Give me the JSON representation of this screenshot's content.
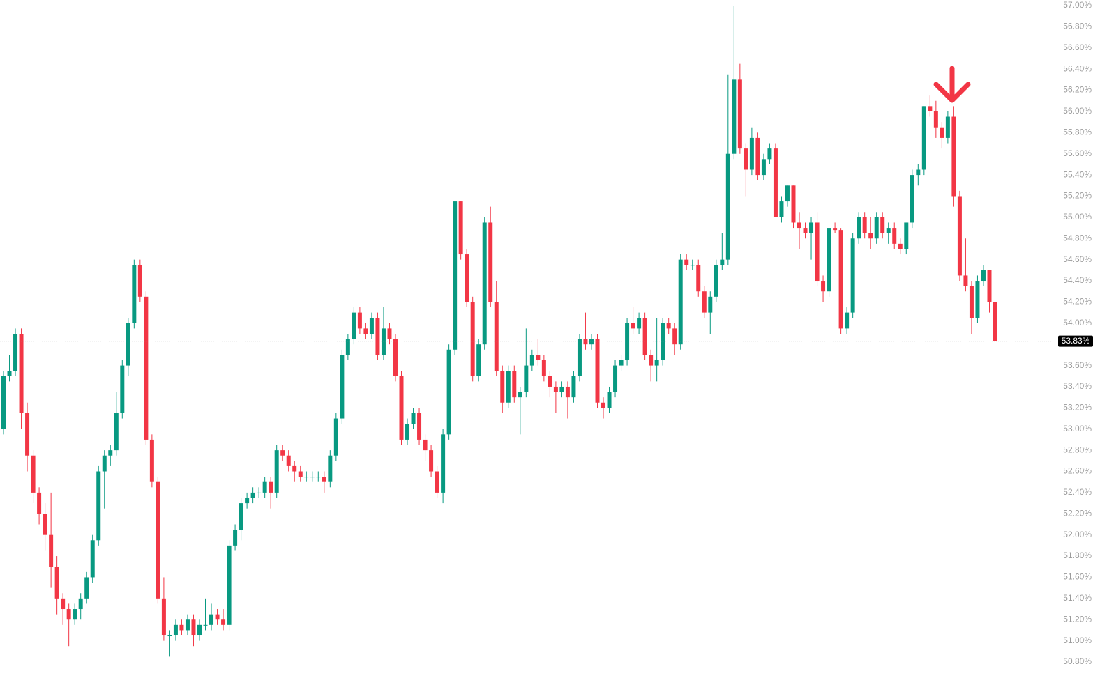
{
  "chart_data": {
    "type": "candlestick",
    "up_color": "#089981",
    "down_color": "#f23645",
    "ylim": [
      50.8,
      57.0
    ],
    "yticks": [
      {
        "value": 50.8,
        "label": "50.80%"
      },
      {
        "value": 51.0,
        "label": "51.00%"
      },
      {
        "value": 51.2,
        "label": "51.20%"
      },
      {
        "value": 51.4,
        "label": "51.40%"
      },
      {
        "value": 51.6,
        "label": "51.60%"
      },
      {
        "value": 51.8,
        "label": "51.80%"
      },
      {
        "value": 52.0,
        "label": "52.00%"
      },
      {
        "value": 52.2,
        "label": "52.20%"
      },
      {
        "value": 52.4,
        "label": "52.40%"
      },
      {
        "value": 52.6,
        "label": "52.60%"
      },
      {
        "value": 52.8,
        "label": "52.80%"
      },
      {
        "value": 53.0,
        "label": "53.00%"
      },
      {
        "value": 53.2,
        "label": "53.20%"
      },
      {
        "value": 53.4,
        "label": "53.40%"
      },
      {
        "value": 53.6,
        "label": "53.60%"
      },
      {
        "value": 54.0,
        "label": "54.00%"
      },
      {
        "value": 54.2,
        "label": "54.20%"
      },
      {
        "value": 54.4,
        "label": "54.40%"
      },
      {
        "value": 54.6,
        "label": "54.60%"
      },
      {
        "value": 54.8,
        "label": "54.80%"
      },
      {
        "value": 55.0,
        "label": "55.00%"
      },
      {
        "value": 55.2,
        "label": "55.20%"
      },
      {
        "value": 55.4,
        "label": "55.40%"
      },
      {
        "value": 55.6,
        "label": "55.60%"
      },
      {
        "value": 55.8,
        "label": "55.80%"
      },
      {
        "value": 56.0,
        "label": "56.00%"
      },
      {
        "value": 56.2,
        "label": "56.20%"
      },
      {
        "value": 56.4,
        "label": "56.40%"
      },
      {
        "value": 56.6,
        "label": "56.60%"
      },
      {
        "value": 56.8,
        "label": "56.80%"
      },
      {
        "value": 57.0,
        "label": "57.00%"
      }
    ],
    "last_price": {
      "value": 53.83,
      "label": "53.83%"
    },
    "open": [
      53.0,
      53.5,
      53.55,
      53.9,
      53.15,
      52.75,
      52.4,
      52.2,
      52.0,
      51.7,
      51.4,
      51.3,
      51.2,
      51.3,
      51.4,
      51.6,
      51.95,
      52.6,
      52.75,
      52.8,
      53.15,
      53.6,
      54.0,
      54.55,
      54.25,
      52.9,
      52.5,
      51.4,
      51.05,
      51.05,
      51.15,
      51.1,
      51.2,
      51.05,
      51.15,
      51.15,
      51.25,
      51.2,
      51.15,
      51.9,
      52.05,
      52.3,
      52.35,
      52.4,
      52.4,
      52.5,
      52.4,
      52.8,
      52.75,
      52.65,
      52.6,
      52.55,
      52.55,
      52.55,
      52.55,
      52.5,
      52.75,
      53.1,
      53.7,
      53.85,
      54.1,
      53.95,
      53.9,
      54.05,
      53.7,
      53.95,
      53.85,
      53.5,
      52.9,
      53.05,
      53.15,
      52.9,
      52.8,
      52.6,
      52.4,
      52.95,
      53.75,
      55.15,
      54.65,
      54.2,
      53.5,
      53.8,
      54.95,
      54.2,
      53.55,
      53.25,
      53.55,
      53.3,
      53.35,
      53.6,
      53.7,
      53.65,
      53.5,
      53.4,
      53.35,
      53.4,
      53.3,
      53.5,
      53.85,
      53.8,
      53.85,
      53.25,
      53.2,
      53.35,
      53.6,
      53.65,
      54.0,
      53.95,
      54.05,
      53.7,
      53.6,
      53.65,
      54.0,
      53.95,
      53.8,
      54.6,
      54.55,
      54.55,
      54.3,
      54.1,
      54.25,
      54.55,
      54.6,
      55.6,
      56.3,
      55.65,
      55.45,
      55.75,
      55.4,
      55.55,
      55.65,
      55.0,
      55.15,
      55.3,
      54.95,
      54.9,
      54.85,
      54.95,
      54.4,
      54.3,
      54.9,
      54.88,
      53.95,
      54.1,
      54.8,
      55.0,
      54.85,
      54.8,
      55.0,
      54.85,
      54.9,
      54.75,
      54.7,
      54.95,
      55.4,
      55.45,
      56.05,
      56.0,
      55.85,
      55.75,
      55.95,
      55.2,
      54.45,
      54.35,
      54.05,
      54.4,
      54.5,
      54.2
    ],
    "high": [
      53.55,
      53.7,
      53.95,
      53.95,
      53.25,
      52.8,
      52.45,
      52.3,
      52.4,
      51.8,
      51.45,
      51.35,
      51.35,
      51.45,
      51.65,
      52.0,
      52.65,
      52.8,
      52.85,
      53.35,
      53.65,
      54.05,
      54.6,
      54.6,
      54.3,
      52.95,
      52.55,
      51.6,
      51.1,
      51.2,
      51.2,
      51.25,
      51.25,
      51.2,
      51.4,
      51.35,
      51.3,
      51.3,
      51.95,
      52.1,
      52.35,
      52.4,
      52.45,
      52.45,
      52.55,
      52.55,
      52.85,
      52.85,
      52.8,
      52.7,
      52.65,
      52.6,
      52.6,
      52.6,
      52.6,
      52.8,
      53.15,
      53.75,
      53.9,
      54.15,
      54.15,
      54.0,
      54.1,
      54.1,
      54.15,
      54.0,
      53.9,
      53.55,
      53.1,
      53.2,
      53.2,
      52.95,
      52.85,
      52.65,
      53.0,
      53.8,
      55.15,
      55.15,
      54.7,
      54.25,
      53.85,
      55.0,
      55.1,
      54.4,
      53.6,
      53.6,
      53.6,
      53.4,
      53.95,
      53.75,
      53.85,
      53.7,
      53.55,
      53.45,
      53.45,
      53.45,
      53.55,
      53.9,
      54.1,
      53.9,
      53.9,
      53.3,
      53.4,
      53.65,
      53.7,
      54.05,
      54.15,
      54.1,
      54.1,
      53.75,
      54.05,
      54.05,
      54.05,
      54.0,
      54.65,
      54.65,
      54.6,
      54.6,
      54.35,
      54.3,
      54.6,
      54.85,
      56.35,
      57.0,
      56.45,
      55.7,
      55.85,
      55.8,
      55.6,
      55.7,
      55.7,
      55.2,
      55.3,
      55.3,
      55.05,
      54.95,
      55.0,
      55.05,
      54.45,
      54.9,
      54.95,
      54.9,
      54.15,
      54.85,
      55.05,
      55.05,
      55.0,
      55.05,
      55.05,
      54.95,
      54.95,
      54.8,
      54.95,
      55.45,
      55.5,
      56.05,
      56.15,
      56.1,
      55.9,
      56.0,
      56.05,
      55.25,
      54.8,
      54.4,
      54.45,
      54.55,
      54.5,
      54.2
    ],
    "low": [
      52.95,
      53.45,
      53.5,
      53.0,
      52.6,
      52.3,
      52.1,
      51.85,
      51.5,
      51.25,
      51.15,
      50.95,
      51.15,
      51.2,
      51.35,
      51.55,
      51.9,
      52.25,
      52.65,
      52.75,
      53.1,
      53.5,
      53.95,
      54.2,
      52.85,
      52.45,
      51.35,
      51.0,
      50.85,
      51.0,
      51.05,
      51.05,
      50.95,
      51.0,
      51.1,
      51.1,
      51.15,
      51.1,
      51.1,
      51.85,
      51.95,
      52.25,
      52.3,
      52.35,
      52.35,
      52.25,
      52.35,
      52.7,
      52.6,
      52.5,
      52.5,
      52.5,
      52.5,
      52.5,
      52.4,
      52.45,
      52.7,
      53.05,
      53.65,
      53.8,
      53.9,
      53.85,
      53.85,
      53.65,
      53.65,
      53.8,
      53.45,
      52.85,
      52.85,
      53.0,
      52.85,
      52.7,
      52.55,
      52.35,
      52.3,
      52.9,
      53.7,
      54.6,
      54.15,
      53.45,
      53.45,
      53.75,
      54.15,
      53.5,
      53.15,
      53.2,
      53.25,
      52.95,
      53.3,
      53.55,
      53.6,
      53.45,
      53.3,
      53.15,
      53.3,
      53.1,
      53.25,
      53.45,
      53.75,
      53.75,
      53.2,
      53.1,
      53.15,
      53.3,
      53.55,
      53.6,
      53.9,
      53.9,
      53.65,
      53.45,
      53.45,
      53.6,
      53.9,
      53.7,
      53.75,
      54.5,
      54.5,
      54.25,
      54.05,
      53.9,
      54.2,
      54.5,
      54.55,
      55.55,
      55.6,
      55.2,
      55.4,
      55.35,
      55.35,
      55.5,
      55.0,
      54.95,
      55.1,
      54.9,
      54.7,
      54.8,
      54.6,
      54.35,
      54.2,
      54.25,
      54.85,
      53.9,
      53.9,
      54.05,
      54.75,
      54.8,
      54.7,
      54.75,
      54.8,
      54.75,
      54.7,
      54.65,
      54.65,
      54.9,
      55.3,
      55.4,
      55.95,
      55.75,
      55.65,
      55.7,
      55.1,
      54.4,
      54.3,
      53.9,
      54.0,
      54.35,
      54.1,
      53.83
    ],
    "close": [
      53.5,
      53.55,
      53.9,
      53.15,
      52.75,
      52.4,
      52.2,
      52.0,
      51.7,
      51.4,
      51.3,
      51.2,
      51.3,
      51.4,
      51.6,
      51.95,
      52.6,
      52.75,
      52.8,
      53.15,
      53.6,
      54.0,
      54.55,
      54.25,
      52.9,
      52.5,
      51.4,
      51.05,
      51.05,
      51.15,
      51.1,
      51.2,
      51.05,
      51.15,
      51.15,
      51.25,
      51.2,
      51.15,
      51.9,
      52.05,
      52.3,
      52.35,
      52.4,
      52.4,
      52.5,
      52.4,
      52.8,
      52.75,
      52.65,
      52.6,
      52.55,
      52.55,
      52.55,
      52.55,
      52.5,
      52.75,
      53.1,
      53.7,
      53.85,
      54.1,
      53.95,
      53.9,
      54.05,
      53.7,
      53.95,
      53.85,
      53.5,
      52.9,
      53.05,
      53.15,
      52.9,
      52.8,
      52.6,
      52.4,
      52.95,
      53.75,
      55.15,
      54.65,
      54.2,
      53.5,
      53.8,
      54.95,
      54.2,
      53.55,
      53.25,
      53.55,
      53.3,
      53.35,
      53.6,
      53.7,
      53.65,
      53.5,
      53.4,
      53.35,
      53.4,
      53.3,
      53.5,
      53.85,
      53.8,
      53.85,
      53.25,
      53.2,
      53.35,
      53.6,
      53.65,
      54.0,
      53.95,
      54.05,
      53.7,
      53.6,
      53.65,
      54.0,
      53.95,
      53.8,
      54.6,
      54.55,
      54.55,
      54.3,
      54.1,
      54.25,
      54.55,
      54.6,
      55.6,
      56.3,
      55.65,
      55.45,
      55.75,
      55.4,
      55.55,
      55.65,
      55.0,
      55.15,
      55.3,
      54.95,
      54.9,
      54.85,
      54.95,
      54.4,
      54.3,
      54.9,
      54.88,
      53.95,
      54.1,
      54.8,
      55.0,
      54.85,
      54.8,
      55.0,
      54.85,
      54.9,
      54.75,
      54.7,
      54.95,
      55.4,
      55.45,
      56.05,
      56.0,
      55.85,
      55.75,
      55.95,
      55.2,
      54.45,
      54.35,
      54.05,
      54.4,
      54.5,
      54.2,
      53.83
    ]
  }
}
